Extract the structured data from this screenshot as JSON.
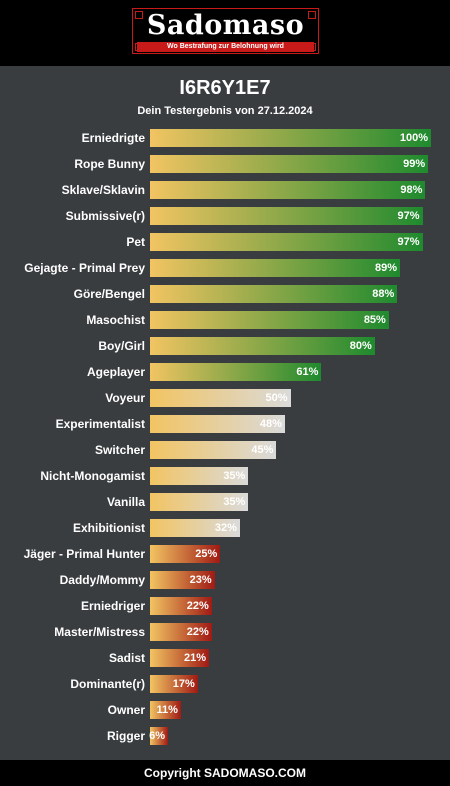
{
  "header": {
    "logo_text": "Sadomaso",
    "logo_tagline": "Wo Bestrafung zur Belohnung wird"
  },
  "result": {
    "title": "I6R6Y1E7",
    "subtitle": "Dein Testergebnis von 27.12.2024"
  },
  "colors": {
    "high_end": "#1f8a2e",
    "mid_end": "#dadada",
    "low_end": "#a01a14",
    "start": "#f2c462"
  },
  "chart_data": {
    "type": "bar",
    "orientation": "horizontal",
    "xlim": [
      0,
      100
    ],
    "items": [
      {
        "label": "Erniedrigte",
        "value": 100,
        "value_label": "100%",
        "tier": "high"
      },
      {
        "label": "Rope Bunny",
        "value": 99,
        "value_label": "99%",
        "tier": "high"
      },
      {
        "label": "Sklave/Sklavin",
        "value": 98,
        "value_label": "98%",
        "tier": "high"
      },
      {
        "label": "Submissive(r)",
        "value": 97,
        "value_label": "97%",
        "tier": "high"
      },
      {
        "label": "Pet",
        "value": 97,
        "value_label": "97%",
        "tier": "high"
      },
      {
        "label": "Gejagte - Primal Prey",
        "value": 89,
        "value_label": "89%",
        "tier": "high"
      },
      {
        "label": "Göre/Bengel",
        "value": 88,
        "value_label": "88%",
        "tier": "high"
      },
      {
        "label": "Masochist",
        "value": 85,
        "value_label": "85%",
        "tier": "high"
      },
      {
        "label": "Boy/Girl",
        "value": 80,
        "value_label": "80%",
        "tier": "high"
      },
      {
        "label": "Ageplayer",
        "value": 61,
        "value_label": "61%",
        "tier": "high"
      },
      {
        "label": "Voyeur",
        "value": 50,
        "value_label": "50%",
        "tier": "mid"
      },
      {
        "label": "Experimentalist",
        "value": 48,
        "value_label": "48%",
        "tier": "mid"
      },
      {
        "label": "Switcher",
        "value": 45,
        "value_label": "45%",
        "tier": "mid"
      },
      {
        "label": "Nicht-Monogamist",
        "value": 35,
        "value_label": "35%",
        "tier": "mid"
      },
      {
        "label": "Vanilla",
        "value": 35,
        "value_label": "35%",
        "tier": "mid"
      },
      {
        "label": "Exhibitionist",
        "value": 32,
        "value_label": "32%",
        "tier": "mid"
      },
      {
        "label": "Jäger - Primal Hunter",
        "value": 25,
        "value_label": "25%",
        "tier": "low"
      },
      {
        "label": "Daddy/Mommy",
        "value": 23,
        "value_label": "23%",
        "tier": "low"
      },
      {
        "label": "Erniedriger",
        "value": 22,
        "value_label": "22%",
        "tier": "low"
      },
      {
        "label": "Master/Mistress",
        "value": 22,
        "value_label": "22%",
        "tier": "low"
      },
      {
        "label": "Sadist",
        "value": 21,
        "value_label": "21%",
        "tier": "low"
      },
      {
        "label": "Dominante(r)",
        "value": 17,
        "value_label": "17%",
        "tier": "low"
      },
      {
        "label": "Owner",
        "value": 11,
        "value_label": "11%",
        "tier": "low"
      },
      {
        "label": "Rigger",
        "value": 6,
        "value_label": "6%",
        "tier": "low"
      }
    ]
  },
  "footer": {
    "copyright": "Copyright SADOMASO.COM"
  }
}
